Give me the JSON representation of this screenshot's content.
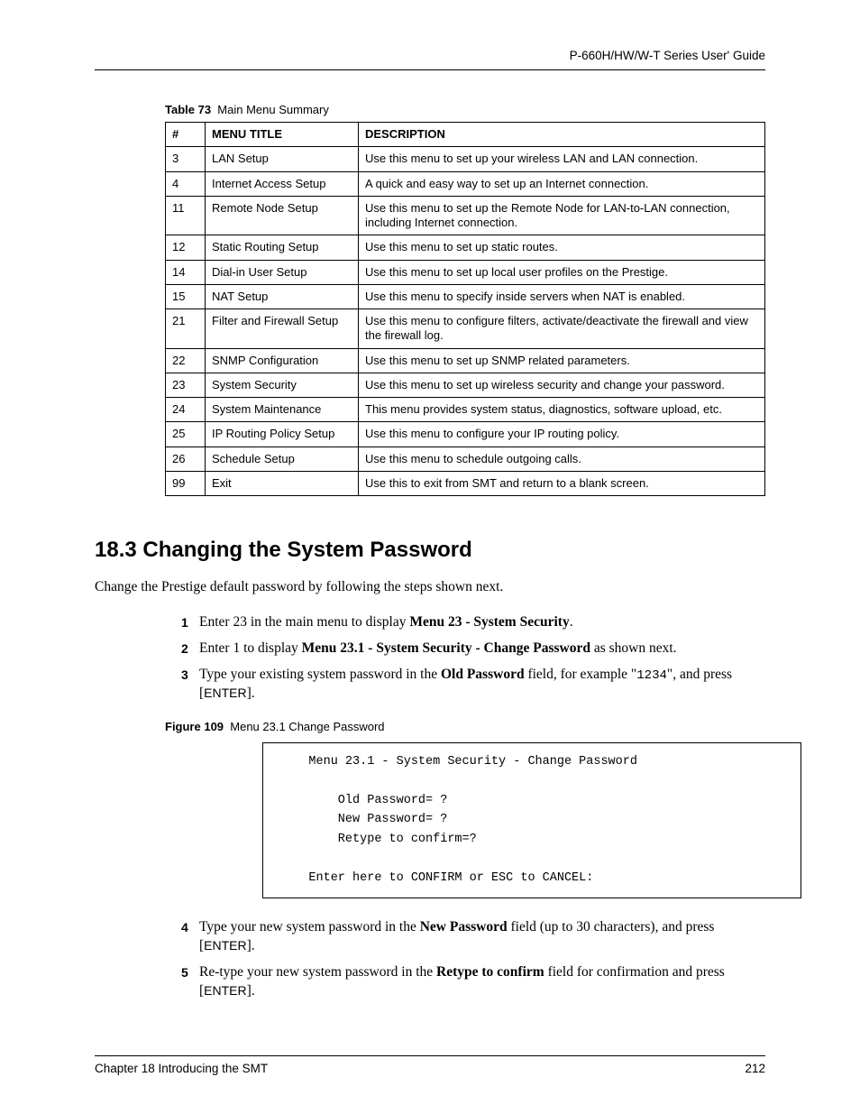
{
  "header": {
    "guide_title": "P-660H/HW/W-T Series User' Guide"
  },
  "table": {
    "caption_label": "Table 73",
    "caption_text": "Main Menu Summary",
    "headers": {
      "num": "#",
      "title": "MENU TITLE",
      "desc": "DESCRIPTION"
    },
    "rows": [
      {
        "num": "3",
        "title": "LAN Setup",
        "desc": "Use this menu to set up your wireless LAN and LAN connection."
      },
      {
        "num": "4",
        "title": "Internet Access Setup",
        "desc": "A quick and easy way to set up an Internet connection."
      },
      {
        "num": "11",
        "title": "Remote Node Setup",
        "desc": "Use this menu to set up the Remote Node for LAN-to-LAN connection, including Internet connection."
      },
      {
        "num": "12",
        "title": "Static Routing Setup",
        "desc": "Use this menu to set up static routes."
      },
      {
        "num": "14",
        "title": "Dial-in User Setup",
        "desc": "Use this menu to set up local user profiles on the Prestige."
      },
      {
        "num": "15",
        "title": "NAT Setup",
        "desc": "Use this menu to specify inside servers when NAT is enabled."
      },
      {
        "num": "21",
        "title": "Filter and Firewall Setup",
        "desc": "Use this menu to configure filters, activate/deactivate the firewall and view the firewall log."
      },
      {
        "num": "22",
        "title": "SNMP Configuration",
        "desc": "Use this menu to set up SNMP related parameters."
      },
      {
        "num": "23",
        "title": "System Security",
        "desc": "Use this menu to set up wireless security and change your password."
      },
      {
        "num": "24",
        "title": "System Maintenance",
        "desc": "This menu provides system status, diagnostics, software upload, etc."
      },
      {
        "num": "25",
        "title": "IP Routing Policy Setup",
        "desc": "Use this menu to configure your IP routing policy."
      },
      {
        "num": "26",
        "title": "Schedule Setup",
        "desc": "Use this menu to schedule outgoing calls."
      },
      {
        "num": "99",
        "title": "Exit",
        "desc": "Use this to exit from SMT and return to a blank screen."
      }
    ]
  },
  "section": {
    "heading": "18.3  Changing the System Password"
  },
  "intro": "Change the Prestige default password by following the steps shown next.",
  "steps1": {
    "s1": {
      "pre": "Enter 23 in the main menu to display ",
      "bold": "Menu 23 - System Security",
      "post": "."
    },
    "s2": {
      "pre": "Enter 1 to display ",
      "bold": "Menu 23.1 - System Security - Change Password",
      "post": " as shown next."
    },
    "s3": {
      "pre": "Type your existing system password in the ",
      "bold": "Old Password",
      "mid": " field, for example \"",
      "mono": "1234",
      "after": "\", and press [",
      "key": "ENTER",
      "end": "]."
    }
  },
  "figure": {
    "caption_label": "Figure 109",
    "caption_text": "Menu 23.1 Change Password",
    "content": "    Menu 23.1 - System Security - Change Password\n\n        Old Password= ?\n        New Password= ?\n        Retype to confirm=?\n\n    Enter here to CONFIRM or ESC to CANCEL:"
  },
  "steps2": {
    "s4": {
      "pre": "Type your new system password in the ",
      "bold": "New Password",
      "post": " field (up to 30 characters), and press [",
      "key": "ENTER",
      "end": "]."
    },
    "s5": {
      "pre": "Re-type your new system password in the ",
      "bold": "Retype to confirm",
      "post": " field for confirmation and press [",
      "key": "ENTER",
      "end": "]."
    }
  },
  "footer": {
    "chapter": "Chapter 18 Introducing the SMT",
    "page": "212"
  }
}
